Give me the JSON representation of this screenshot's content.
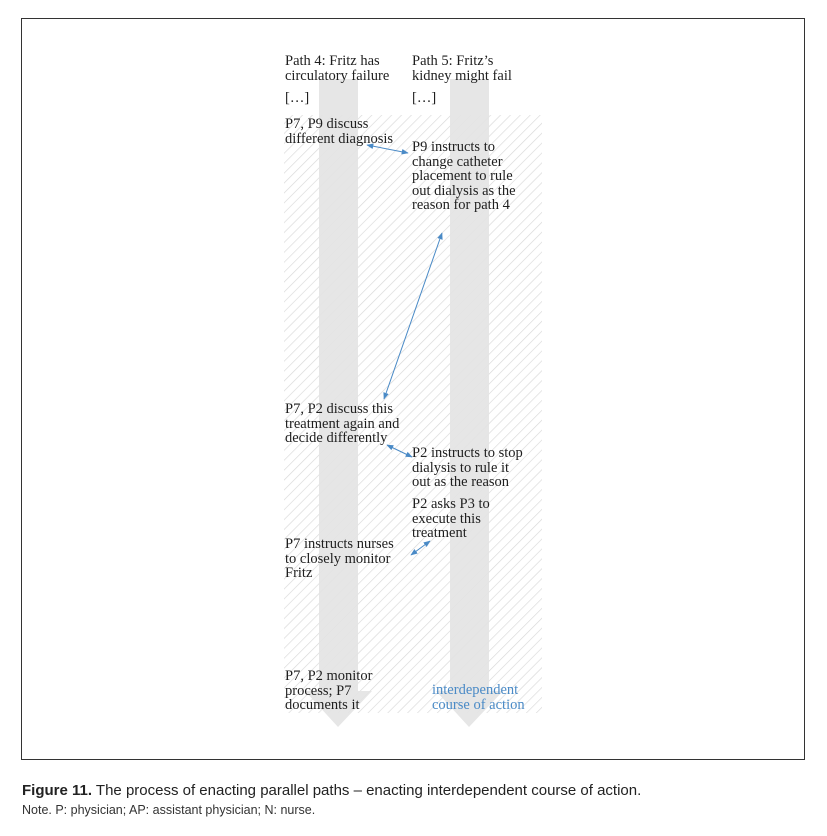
{
  "diagram": {
    "nodes": {
      "path4_header": "Path 4: Fritz has\ncirculatory failure",
      "path5_header": "Path 5: Fritz’s\nkidney might fail",
      "ellipsis_left": "[…]",
      "ellipsis_right": "[…]",
      "p7_p9_discuss": "P7, P9 discuss\ndifferent diagnosis",
      "p9_instructs": "P9 instructs to\nchange catheter\nplacement to rule\nout dialysis as the\nreason for path 4",
      "p7_p2_discuss": "P7, P2 discuss this\ntreatment again and\ndecide differently",
      "p2_instructs": "P2 instructs to stop\ndialysis to rule it\nout as the reason",
      "p2_asks_p3": "P2 asks P3 to\nexecute this\ntreatment",
      "p7_instructs_nurses": "P7 instructs nurses\nto closely monitor\nFritz",
      "p7_p2_monitor": "P7, P2 monitor\nprocess; P7\ndocuments it",
      "legend": "interdependent\ncourse of action"
    },
    "colors": {
      "connector": "#4a8ac6",
      "hatch": "#d8d8d8",
      "path_arrow": "#e3e3e3",
      "legend_text": "#4a8ac6"
    }
  },
  "caption": {
    "label": "Figure 11.",
    "text": " The process of enacting parallel paths – enacting interdependent course of action."
  },
  "note": "Note. P: physician; AP: assistant physician; N: nurse."
}
